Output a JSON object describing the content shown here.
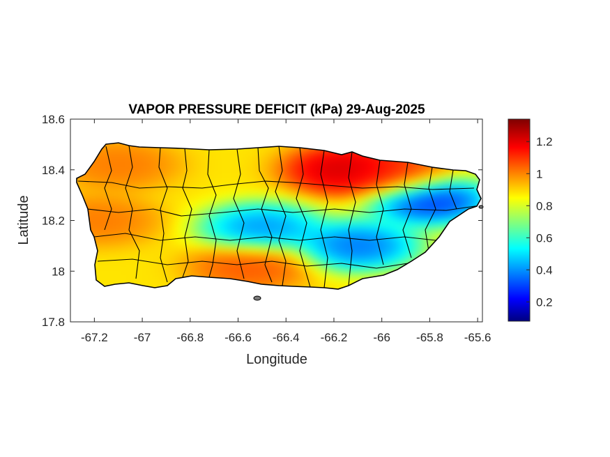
{
  "chart_data": {
    "type": "heatmap",
    "title": "VAPOR PRESSURE DEFICIT (kPa) 29-Aug-2025",
    "xlabel": "Longitude",
    "ylabel": "Latitude",
    "xlim": [
      -67.3,
      -65.58
    ],
    "ylim": [
      17.8,
      18.6
    ],
    "xticks": [
      -67.2,
      -67,
      -66.8,
      -66.6,
      -66.4,
      -66.2,
      -66,
      -65.8,
      -65.6
    ],
    "xtick_labels": [
      "-67.2",
      "-67",
      "-66.8",
      "-66.6",
      "-66.4",
      "-66.2",
      "-66",
      "-65.8",
      "-65.6"
    ],
    "yticks": [
      17.8,
      18,
      18.2,
      18.4,
      18.6
    ],
    "ytick_labels": [
      "17.8",
      "18",
      "18.2",
      "18.4",
      "18.6"
    ],
    "colorbar": {
      "min": 0.08,
      "max": 1.34,
      "ticks": [
        0.2,
        0.4,
        0.6,
        0.8,
        1,
        1.2
      ],
      "tick_labels": [
        "0.2",
        "0.4",
        "0.6",
        "0.8",
        "1",
        "1.2"
      ],
      "colormap": "jet"
    },
    "regions": [
      {
        "name": "northwest coast high",
        "lon": -67.1,
        "lat": 18.42,
        "value": 1.05
      },
      {
        "name": "west coast high",
        "lon": -67.18,
        "lat": 18.2,
        "value": 1.05
      },
      {
        "name": "north-central max",
        "lon": -66.15,
        "lat": 18.4,
        "value": 1.3
      },
      {
        "name": "north-east high",
        "lon": -65.95,
        "lat": 18.38,
        "value": 1.15
      },
      {
        "name": "south coast high",
        "lon": -66.55,
        "lat": 18.02,
        "value": 1.1
      },
      {
        "name": "central cordillera low",
        "lon": -66.5,
        "lat": 18.17,
        "value": 0.35
      },
      {
        "name": "south-east interior low",
        "lon": -66.1,
        "lat": 18.1,
        "value": 0.3
      },
      {
        "name": "east min",
        "lon": -65.8,
        "lat": 18.28,
        "value": 0.2
      }
    ]
  }
}
